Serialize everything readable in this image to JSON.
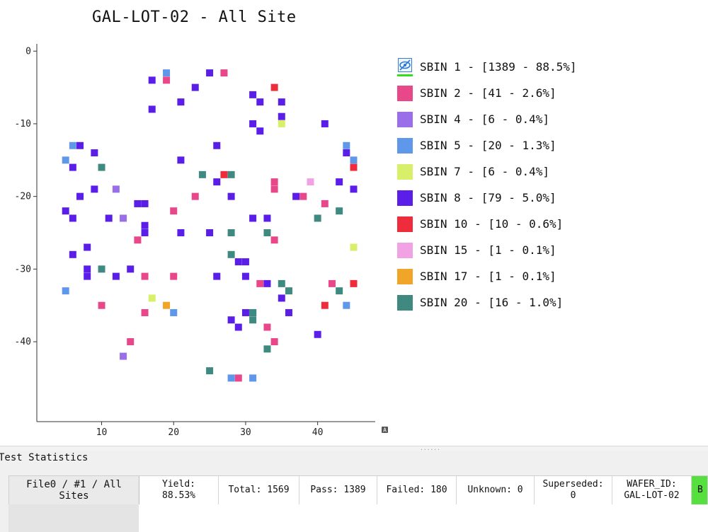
{
  "chart_data": {
    "type": "scatter",
    "title": "GAL-LOT-02 - All Site",
    "xlabel": "",
    "ylabel": "",
    "xlim": [
      1,
      48
    ],
    "ylim": [
      -51,
      1
    ],
    "xticks": [
      10,
      20,
      30,
      40
    ],
    "yticks": [
      0,
      -10,
      -20,
      -30,
      -40
    ],
    "grid": false,
    "legend_position": "right",
    "series": [
      {
        "name": "SBIN 1 - [1389 - 88.5%]",
        "color": "#2e7bd6",
        "icon": "eye-slash-icon",
        "points": []
      },
      {
        "name": "SBIN 2 - [41 - 2.6%]",
        "color": "#e8478a",
        "points": [
          [
            19,
            -4
          ],
          [
            27,
            -3
          ],
          [
            34,
            -18
          ],
          [
            34,
            -19
          ],
          [
            20,
            -22
          ],
          [
            23,
            -20
          ],
          [
            15,
            -26
          ],
          [
            16,
            -31
          ],
          [
            20,
            -31
          ],
          [
            10,
            -35
          ],
          [
            16,
            -36
          ],
          [
            14,
            -40
          ],
          [
            29,
            -45
          ],
          [
            32,
            -32
          ],
          [
            33,
            -38
          ],
          [
            34,
            -40
          ],
          [
            34,
            -26
          ],
          [
            38,
            -20
          ],
          [
            41,
            -21
          ],
          [
            42,
            -32
          ]
        ]
      },
      {
        "name": "SBIN 4 - [6 - 0.4%]",
        "color": "#9a6ee8",
        "points": [
          [
            12,
            -19
          ],
          [
            13,
            -23
          ],
          [
            13,
            -42
          ]
        ]
      },
      {
        "name": "SBIN 5 - [20 - 1.3%]",
        "color": "#5f97ea",
        "points": [
          [
            19,
            -3
          ],
          [
            6,
            -13
          ],
          [
            5,
            -15
          ],
          [
            5,
            -33
          ],
          [
            20,
            -36
          ],
          [
            28,
            -45
          ],
          [
            31,
            -45
          ],
          [
            44,
            -13
          ],
          [
            45,
            -15
          ],
          [
            44,
            -35
          ]
        ]
      },
      {
        "name": "SBIN 7 - [6 - 0.4%]",
        "color": "#d8ef6a",
        "points": [
          [
            35,
            -10
          ],
          [
            17,
            -34
          ],
          [
            45,
            -27
          ]
        ]
      },
      {
        "name": "SBIN 8 - [79 - 5.0%]",
        "color": "#5a1ee8",
        "points": [
          [
            17,
            -4
          ],
          [
            25,
            -3
          ],
          [
            23,
            -5
          ],
          [
            21,
            -7
          ],
          [
            17,
            -8
          ],
          [
            31,
            -6
          ],
          [
            32,
            -7
          ],
          [
            35,
            -7
          ],
          [
            35,
            -9
          ],
          [
            31,
            -10
          ],
          [
            32,
            -11
          ],
          [
            41,
            -10
          ],
          [
            7,
            -13
          ],
          [
            9,
            -14
          ],
          [
            6,
            -16
          ],
          [
            7,
            -20
          ],
          [
            9,
            -19
          ],
          [
            5,
            -22
          ],
          [
            6,
            -23
          ],
          [
            11,
            -23
          ],
          [
            15,
            -21
          ],
          [
            16,
            -21
          ],
          [
            16,
            -24
          ],
          [
            16,
            -25
          ],
          [
            21,
            -15
          ],
          [
            26,
            -13
          ],
          [
            26,
            -18
          ],
          [
            28,
            -20
          ],
          [
            21,
            -25
          ],
          [
            25,
            -25
          ],
          [
            6,
            -28
          ],
          [
            8,
            -27
          ],
          [
            8,
            -30
          ],
          [
            8,
            -31
          ],
          [
            12,
            -31
          ],
          [
            14,
            -30
          ],
          [
            26,
            -31
          ],
          [
            28,
            -37
          ],
          [
            29,
            -38
          ],
          [
            29,
            -29
          ],
          [
            30,
            -29
          ],
          [
            30,
            -31
          ],
          [
            30,
            -36
          ],
          [
            31,
            -36
          ],
          [
            31,
            -23
          ],
          [
            33,
            -23
          ],
          [
            33,
            -32
          ],
          [
            35,
            -34
          ],
          [
            36,
            -36
          ],
          [
            37,
            -20
          ],
          [
            40,
            -39
          ],
          [
            43,
            -18
          ],
          [
            44,
            -14
          ],
          [
            45,
            -19
          ]
        ]
      },
      {
        "name": "SBIN 10 - [10 - 0.6%]",
        "color": "#ee2c3c",
        "points": [
          [
            34,
            -5
          ],
          [
            27,
            -17
          ],
          [
            45,
            -16
          ],
          [
            41,
            -35
          ],
          [
            45,
            -32
          ]
        ]
      },
      {
        "name": "SBIN 15 - [1 - 0.1%]",
        "color": "#f0a2e4",
        "points": [
          [
            39,
            -18
          ]
        ]
      },
      {
        "name": "SBIN 17 - [1 - 0.1%]",
        "color": "#f0a428",
        "points": [
          [
            19,
            -35
          ]
        ]
      },
      {
        "name": "SBIN 20 - [16 - 1.0%]",
        "color": "#3e8a80",
        "points": [
          [
            10,
            -16
          ],
          [
            10,
            -30
          ],
          [
            24,
            -17
          ],
          [
            28,
            -17
          ],
          [
            28,
            -25
          ],
          [
            28,
            -28
          ],
          [
            33,
            -25
          ],
          [
            31,
            -36
          ],
          [
            31,
            -37
          ],
          [
            35,
            -32
          ],
          [
            36,
            -33
          ],
          [
            33,
            -41
          ],
          [
            25,
            -44
          ],
          [
            40,
            -23
          ],
          [
            43,
            -22
          ],
          [
            43,
            -33
          ]
        ]
      }
    ]
  },
  "ui": {
    "corner_badge": "A",
    "splitter_dots": "......"
  },
  "stats": {
    "panel_title": "Test Statistics",
    "file_label": "File0 / #1 / All Sites",
    "yield": "Yield:\n88.53%",
    "total": "Total: 1569",
    "pass": "Pass: 1389",
    "failed": "Failed: 180",
    "unknown": "Unknown: 0",
    "superseded": "Superseded:\n0",
    "wafer_id": "WAFER_ID:\nGAL-LOT-02",
    "extra": "B",
    "extra_color": "#55e040"
  }
}
